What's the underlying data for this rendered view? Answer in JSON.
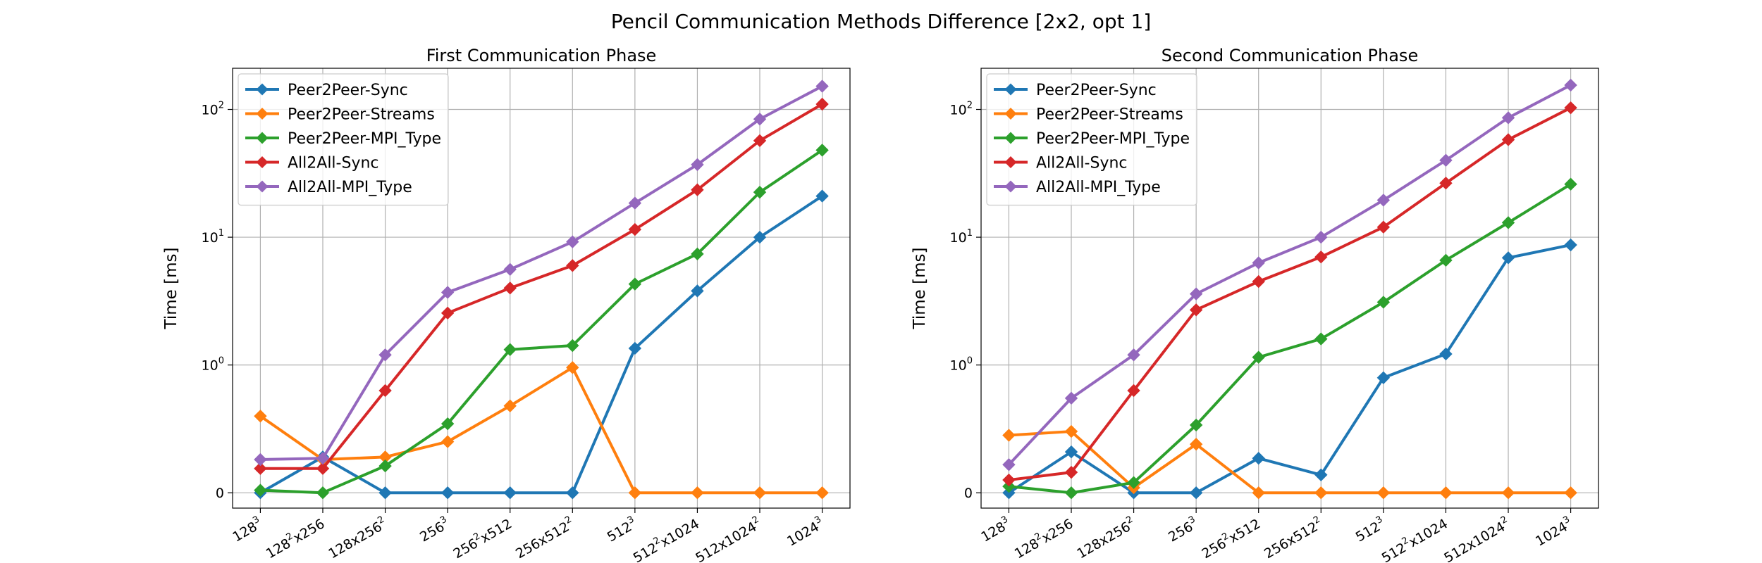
{
  "figure": {
    "suptitle": "Pencil Communication Methods Difference [2x2, opt 1]"
  },
  "chart_data": [
    {
      "type": "line",
      "title": "First Communication Phase",
      "xlabel": "",
      "ylabel": "Time [ms]",
      "yscale": "symlog",
      "grid": true,
      "legend_position": "top-left",
      "categories": [
        {
          "base": "128",
          "sup": "3",
          "rest": ""
        },
        {
          "base": "128",
          "sup": "2",
          "rest": "x256"
        },
        {
          "base": "128x256",
          "sup": "2",
          "rest": ""
        },
        {
          "base": "256",
          "sup": "3",
          "rest": ""
        },
        {
          "base": "256",
          "sup": "2",
          "rest": "x512"
        },
        {
          "base": "256x512",
          "sup": "2",
          "rest": ""
        },
        {
          "base": "512",
          "sup": "3",
          "rest": ""
        },
        {
          "base": "512",
          "sup": "2",
          "rest": "x1024"
        },
        {
          "base": "512x1024",
          "sup": "2",
          "rest": ""
        },
        {
          "base": "1024",
          "sup": "3",
          "rest": ""
        }
      ],
      "y_ticks": [
        {
          "value": 0,
          "base": "0",
          "sup": ""
        },
        {
          "value": 1,
          "base": "10",
          "sup": "0"
        },
        {
          "value": 10,
          "base": "10",
          "sup": "1"
        },
        {
          "value": 100,
          "base": "10",
          "sup": "2"
        }
      ],
      "ylim": [
        -0.12,
        210
      ],
      "series": [
        {
          "name": "Peer2Peer-Sync",
          "color": "#1f77b4",
          "values": [
            0.0,
            0.28,
            0.0,
            0.0,
            0.0,
            0.0,
            1.35,
            3.8,
            10.0,
            21.0
          ]
        },
        {
          "name": "Peer2Peer-Streams",
          "color": "#ff7f0e",
          "values": [
            0.6,
            0.26,
            0.28,
            0.4,
            0.68,
            0.98,
            0.0,
            0.0,
            0.0,
            0.0
          ]
        },
        {
          "name": "Peer2Peer-MPI_Type",
          "color": "#2ca02c",
          "values": [
            0.02,
            0.0,
            0.21,
            0.54,
            1.32,
            1.42,
            4.3,
            7.4,
            22.5,
            48.0
          ]
        },
        {
          "name": "All2All-Sync",
          "color": "#d62728",
          "values": [
            0.19,
            0.19,
            0.8,
            2.55,
            4.0,
            6.0,
            11.5,
            23.5,
            57.0,
            110.0
          ]
        },
        {
          "name": "All2All-MPI_Type",
          "color": "#9467bd",
          "values": [
            0.26,
            0.27,
            1.2,
            3.7,
            5.6,
            9.2,
            18.5,
            37.0,
            84.0,
            152.0
          ]
        }
      ]
    },
    {
      "type": "line",
      "title": "Second Communication Phase",
      "xlabel": "",
      "ylabel": "Time [ms]",
      "yscale": "symlog",
      "grid": true,
      "legend_position": "top-left",
      "categories": [
        {
          "base": "128",
          "sup": "3",
          "rest": ""
        },
        {
          "base": "128",
          "sup": "2",
          "rest": "x256"
        },
        {
          "base": "128x256",
          "sup": "2",
          "rest": ""
        },
        {
          "base": "256",
          "sup": "3",
          "rest": ""
        },
        {
          "base": "256",
          "sup": "2",
          "rest": "x512"
        },
        {
          "base": "256x512",
          "sup": "2",
          "rest": ""
        },
        {
          "base": "512",
          "sup": "3",
          "rest": ""
        },
        {
          "base": "512",
          "sup": "2",
          "rest": "x1024"
        },
        {
          "base": "512x1024",
          "sup": "2",
          "rest": ""
        },
        {
          "base": "1024",
          "sup": "3",
          "rest": ""
        }
      ],
      "y_ticks": [
        {
          "value": 0,
          "base": "0",
          "sup": ""
        },
        {
          "value": 1,
          "base": "10",
          "sup": "0"
        },
        {
          "value": 10,
          "base": "10",
          "sup": "1"
        },
        {
          "value": 100,
          "base": "10",
          "sup": "2"
        }
      ],
      "ylim": [
        -0.12,
        210
      ],
      "series": [
        {
          "name": "Peer2Peer-Sync",
          "color": "#1f77b4",
          "values": [
            0.0,
            0.32,
            0.0,
            0.0,
            0.27,
            0.14,
            0.9,
            1.22,
            6.9,
            8.7
          ]
        },
        {
          "name": "Peer2Peer-Streams",
          "color": "#ff7f0e",
          "values": [
            0.45,
            0.48,
            0.04,
            0.38,
            0.0,
            0.0,
            0.0,
            0.0,
            0.0,
            0.0
          ]
        },
        {
          "name": "Peer2Peer-MPI_Type",
          "color": "#2ca02c",
          "values": [
            0.05,
            0.0,
            0.08,
            0.53,
            1.15,
            1.6,
            3.1,
            6.6,
            13.0,
            26.0
          ]
        },
        {
          "name": "All2All-Sync",
          "color": "#d62728",
          "values": [
            0.1,
            0.16,
            0.8,
            2.7,
            4.5,
            7.0,
            12.0,
            26.5,
            58.0,
            103.0
          ]
        },
        {
          "name": "All2All-MPI_Type",
          "color": "#9467bd",
          "values": [
            0.22,
            0.74,
            1.2,
            3.6,
            6.3,
            10.0,
            19.5,
            40.0,
            86.0,
            155.0
          ]
        }
      ]
    }
  ]
}
